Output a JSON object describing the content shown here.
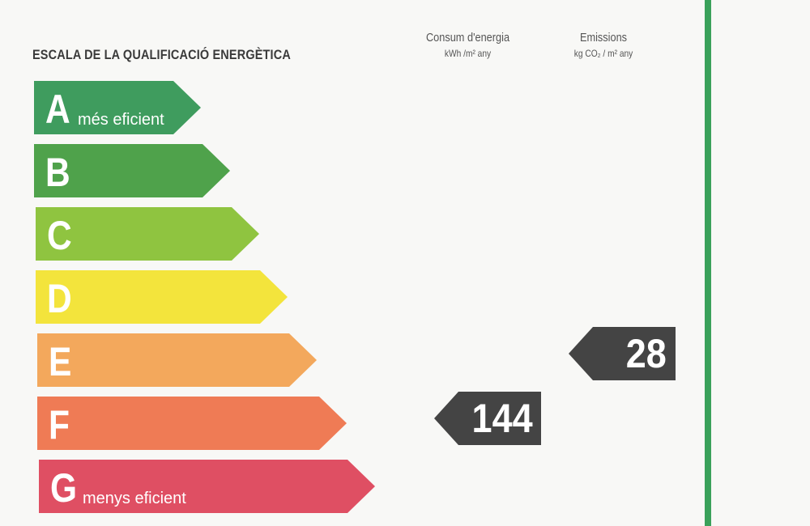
{
  "title": "ESCALA DE LA QUALIFICACIÓ ENERGÈTICA",
  "columns": [
    {
      "label": "Consum d'energia",
      "unit": "kWh /m² any"
    },
    {
      "label": "Emissions",
      "unit": "kg CO₂ / m² any"
    }
  ],
  "bands": [
    {
      "letter": "A",
      "sub": "més eficient",
      "color": "#3f9c5e"
    },
    {
      "letter": "B",
      "sub": "",
      "color": "#4fa24b"
    },
    {
      "letter": "C",
      "sub": "",
      "color": "#8fc440"
    },
    {
      "letter": "D",
      "sub": "",
      "color": "#f3e43c"
    },
    {
      "letter": "E",
      "sub": "",
      "color": "#f3a85c"
    },
    {
      "letter": "F",
      "sub": "",
      "color": "#ef7b55"
    },
    {
      "letter": "G",
      "sub": "menys eficient",
      "color": "#df4f63"
    }
  ],
  "ratings": {
    "consumption": {
      "value": "144",
      "class": "F"
    },
    "emissions": {
      "value": "28",
      "class": "E"
    }
  },
  "accent_line_color": "#3aa15a"
}
